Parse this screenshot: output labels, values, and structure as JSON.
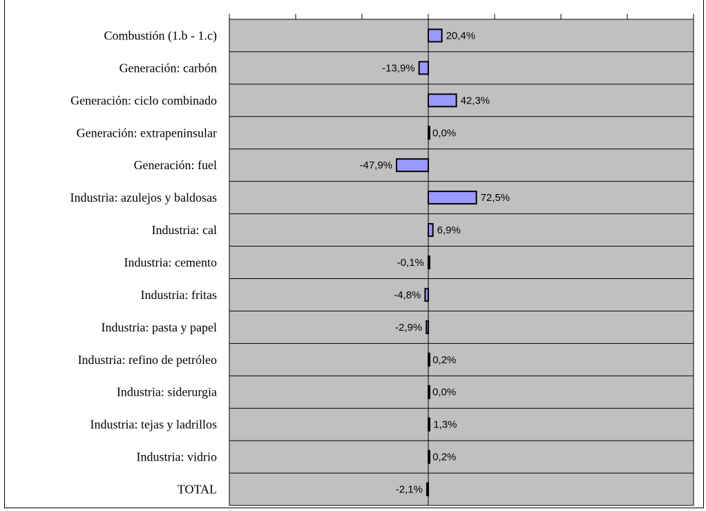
{
  "chart_data": {
    "type": "bar",
    "orientation": "horizontal",
    "title": "",
    "xlabel": "",
    "ylabel": "",
    "xlim": [
      -300,
      400
    ],
    "x_major_tick_step": 100,
    "x_tick_labels_shown": false,
    "grid": true,
    "legend": "none",
    "categories": [
      "Combustión (1.b - 1.c)",
      "Generación: carbón",
      "Generación: ciclo combinado",
      "Generación: extrapeninsular",
      "Generación: fuel",
      "Industria: azulejos y baldosas",
      "Industria: cal",
      "Industria: cemento",
      "Industria: fritas",
      "Industria: pasta y papel",
      "Industria: refino de petróleo",
      "Industria: siderurgia",
      "Industria: tejas y ladrillos",
      "Industria: vidrio",
      "TOTAL"
    ],
    "values": [
      20.4,
      -13.9,
      42.3,
      0.0,
      -47.9,
      72.5,
      6.9,
      -0.1,
      -4.8,
      -2.9,
      0.2,
      0.0,
      1.3,
      0.2,
      -2.1
    ],
    "value_labels": [
      "20,4%",
      "-13,9%",
      "42,3%",
      "0,0%",
      "-47,9%",
      "72,5%",
      "6,9%",
      "-0,1%",
      "-4,8%",
      "-2,9%",
      "0,2%",
      "0,0%",
      "1,3%",
      "0,2%",
      "-2,1%"
    ],
    "colors": {
      "plot_background": "#c0c0c0",
      "bar_fill": "#9999ff",
      "bar_stroke": "#000000",
      "grid": "#000000"
    }
  }
}
